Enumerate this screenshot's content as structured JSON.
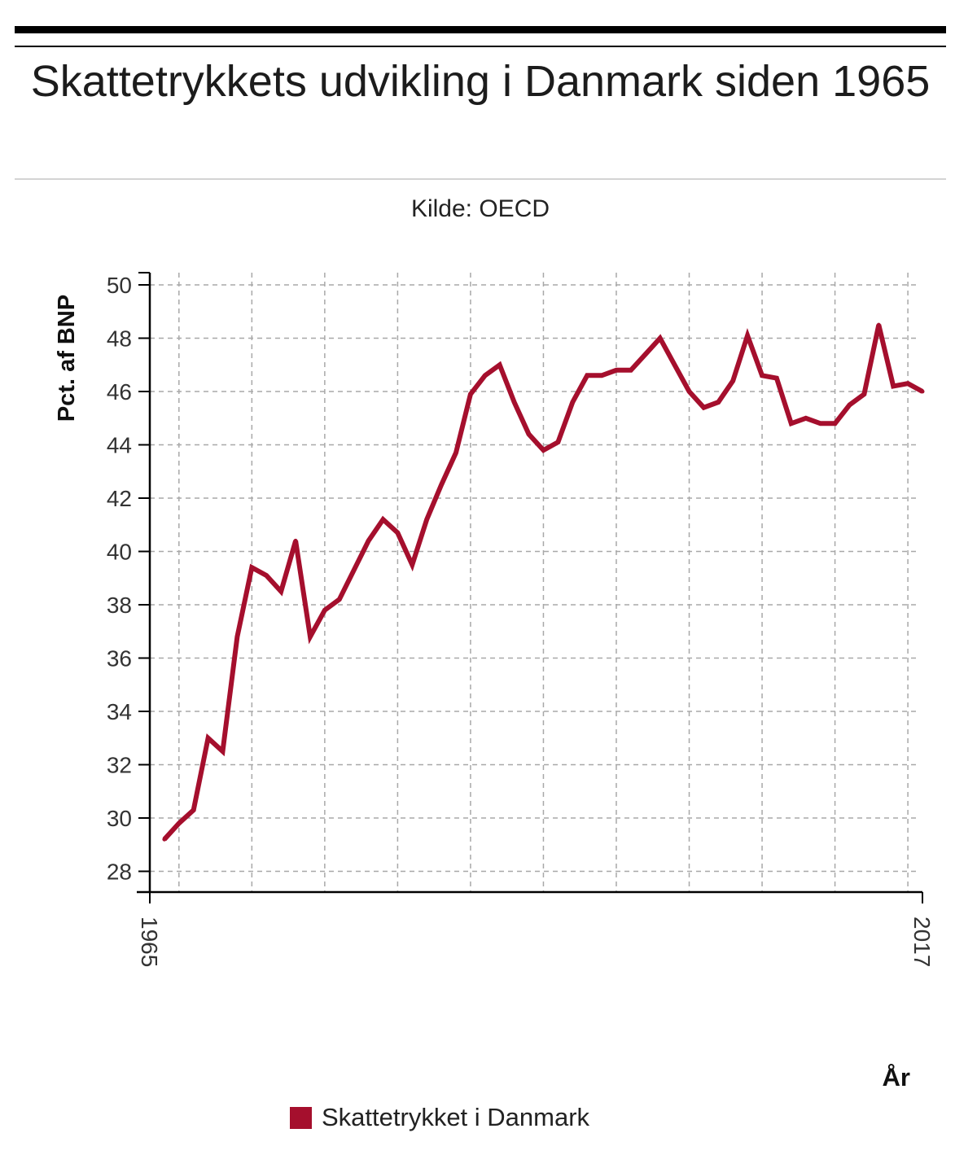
{
  "title": "Skattetrykkets udvikling i Danmark siden 1965",
  "source": "Kilde: OECD",
  "chart_data": {
    "type": "line",
    "title": "Skattetrykkets udvikling i Danmark siden 1965",
    "subtitle": "Kilde: OECD",
    "xlabel": "År",
    "ylabel": "Pct. af BNP",
    "xlim": [
      1964,
      2017
    ],
    "ylim": [
      27,
      50.5
    ],
    "y_ticks": [
      28,
      30,
      32,
      34,
      36,
      38,
      40,
      42,
      44,
      46,
      48,
      50
    ],
    "x_tick_labels": [
      "1965",
      "2017"
    ],
    "grid": true,
    "legend_position": "bottom",
    "colors": {
      "series": "#a50f2d"
    },
    "series": [
      {
        "name": "Skattetrykket i Danmark",
        "x": [
          1965,
          1966,
          1967,
          1968,
          1969,
          1970,
          1971,
          1972,
          1973,
          1974,
          1975,
          1976,
          1977,
          1978,
          1979,
          1980,
          1981,
          1982,
          1983,
          1984,
          1985,
          1986,
          1987,
          1988,
          1989,
          1990,
          1991,
          1992,
          1993,
          1994,
          1995,
          1996,
          1997,
          1998,
          1999,
          2000,
          2001,
          2002,
          2003,
          2004,
          2005,
          2006,
          2007,
          2008,
          2009,
          2010,
          2011,
          2012,
          2013,
          2014,
          2015,
          2016,
          2017
        ],
        "values": [
          29.2,
          29.8,
          30.3,
          33.0,
          32.5,
          36.8,
          39.4,
          39.1,
          38.5,
          40.4,
          36.8,
          37.8,
          38.2,
          39.3,
          40.4,
          41.2,
          40.7,
          39.5,
          41.2,
          42.5,
          43.7,
          45.9,
          46.6,
          47.0,
          45.6,
          44.4,
          43.8,
          44.1,
          45.6,
          46.6,
          46.6,
          46.8,
          46.8,
          47.4,
          48.0,
          47.0,
          46.0,
          45.4,
          45.6,
          46.4,
          48.1,
          46.6,
          46.5,
          44.8,
          45.0,
          44.8,
          44.8,
          45.5,
          45.9,
          48.5,
          46.2,
          46.3,
          46.0
        ]
      }
    ]
  }
}
